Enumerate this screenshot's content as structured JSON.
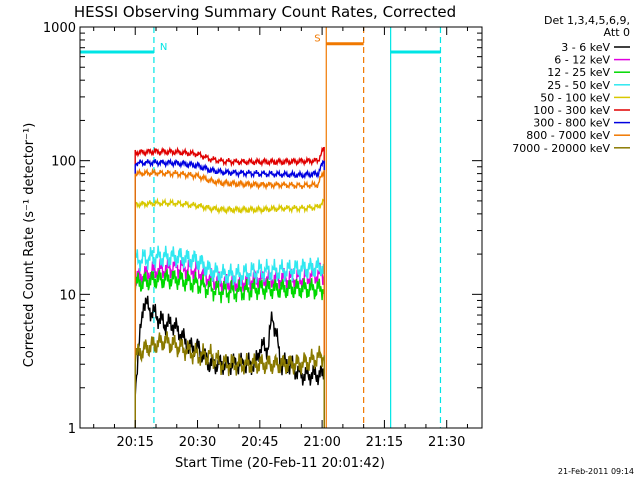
{
  "colors": {
    "bg": "#ffffff",
    "axes": "#000000",
    "cyan": "#00e5e5",
    "orange": "#f07800",
    "black": "#000000",
    "magenta": "#e000e0",
    "green": "#00d800",
    "lightcyan": "#30e8f0",
    "yellow": "#d8c800",
    "red": "#e00000",
    "blue": "#0000e0",
    "olive": "#8a7a00"
  },
  "chart_data": {
    "type": "line",
    "title": "HESSI Observing Summary Count Rates, Corrected",
    "xlabel": "Start Time (20-Feb-11 20:01:42)",
    "ylabel": "Corrected Count Rate (s⁻¹ detector⁻¹)",
    "y_scale": "log",
    "xlim_minutes_after_2000": [
      1.7,
      98.5
    ],
    "ylim": [
      1,
      1000
    ],
    "x_ticks": [
      {
        "label": "20:15",
        "t": 15
      },
      {
        "label": "20:30",
        "t": 30
      },
      {
        "label": "20:45",
        "t": 45
      },
      {
        "label": "21:00",
        "t": 60
      },
      {
        "label": "21:15",
        "t": 75
      },
      {
        "label": "21:30",
        "t": 90
      }
    ],
    "y_ticks": [
      {
        "label": "1",
        "v": 1
      },
      {
        "label": "10",
        "v": 10
      },
      {
        "label": "100",
        "v": 100
      },
      {
        "label": "1000",
        "v": 1000
      }
    ],
    "legend_header": [
      "Det 1,3,4,5,6,9,",
      "Att 0"
    ],
    "legend_position": "right",
    "series": [
      {
        "name": "3 - 6 keV",
        "color": "#000000",
        "points": [
          [
            15,
            2
          ],
          [
            15.5,
            3
          ],
          [
            17,
            9
          ],
          [
            18,
            8
          ],
          [
            20,
            7
          ],
          [
            22,
            6
          ],
          [
            24,
            6
          ],
          [
            26,
            5
          ],
          [
            28,
            4
          ],
          [
            30,
            4
          ],
          [
            33,
            3
          ],
          [
            36,
            3
          ],
          [
            40,
            3
          ],
          [
            44,
            3
          ],
          [
            45,
            4
          ],
          [
            47,
            4
          ],
          [
            48,
            7
          ],
          [
            49,
            5
          ],
          [
            50,
            3
          ],
          [
            52,
            3
          ],
          [
            55,
            2.5
          ],
          [
            58,
            2.5
          ],
          [
            60.5,
            2.5
          ]
        ]
      },
      {
        "name": "6 - 12 keV",
        "color": "#e000e0",
        "points": [
          [
            15,
            13
          ],
          [
            20,
            15
          ],
          [
            25,
            16
          ],
          [
            30,
            15
          ],
          [
            33,
            13
          ],
          [
            36,
            12
          ],
          [
            40,
            12
          ],
          [
            45,
            13
          ],
          [
            50,
            13
          ],
          [
            55,
            13
          ],
          [
            58,
            14
          ],
          [
            60.5,
            14
          ]
        ]
      },
      {
        "name": "12 - 25 keV",
        "color": "#00d800",
        "points": [
          [
            15,
            12
          ],
          [
            20,
            13
          ],
          [
            25,
            13
          ],
          [
            30,
            12
          ],
          [
            33,
            11
          ],
          [
            36,
            10.5
          ],
          [
            40,
            10.5
          ],
          [
            45,
            11
          ],
          [
            50,
            11
          ],
          [
            55,
            11
          ],
          [
            60.5,
            11
          ]
        ]
      },
      {
        "name": "25 - 50 keV",
        "color": "#30e8f0",
        "points": [
          [
            15,
            18
          ],
          [
            20,
            19
          ],
          [
            25,
            19
          ],
          [
            30,
            18
          ],
          [
            33,
            15
          ],
          [
            36,
            14
          ],
          [
            40,
            14
          ],
          [
            45,
            15
          ],
          [
            50,
            15
          ],
          [
            55,
            15.5
          ],
          [
            60.5,
            16
          ]
        ]
      },
      {
        "name": "50 - 100 keV",
        "color": "#d8c800",
        "points": [
          [
            15,
            47
          ],
          [
            20,
            48
          ],
          [
            25,
            48
          ],
          [
            30,
            46
          ],
          [
            33,
            44
          ],
          [
            36,
            43
          ],
          [
            40,
            43
          ],
          [
            45,
            43
          ],
          [
            50,
            44
          ],
          [
            55,
            44
          ],
          [
            59,
            45
          ],
          [
            60.5,
            50
          ]
        ]
      },
      {
        "name": "100 - 300 keV",
        "color": "#e00000",
        "points": [
          [
            15,
            115
          ],
          [
            20,
            117
          ],
          [
            25,
            116
          ],
          [
            30,
            112
          ],
          [
            33,
            103
          ],
          [
            36,
            99
          ],
          [
            40,
            98
          ],
          [
            45,
            98
          ],
          [
            50,
            98
          ],
          [
            55,
            99
          ],
          [
            59,
            100
          ],
          [
            60.5,
            125
          ]
        ]
      },
      {
        "name": "300 - 800 keV",
        "color": "#0000e0",
        "points": [
          [
            15,
            96
          ],
          [
            20,
            97
          ],
          [
            25,
            96
          ],
          [
            30,
            92
          ],
          [
            33,
            85
          ],
          [
            36,
            82
          ],
          [
            40,
            81
          ],
          [
            45,
            80
          ],
          [
            50,
            79
          ],
          [
            55,
            78
          ],
          [
            59,
            80
          ],
          [
            60.5,
            100
          ]
        ]
      },
      {
        "name": "800 - 7000 keV",
        "color": "#f07800",
        "points": [
          [
            15,
            80
          ],
          [
            20,
            81
          ],
          [
            25,
            80
          ],
          [
            30,
            77
          ],
          [
            33,
            71
          ],
          [
            36,
            68
          ],
          [
            40,
            67
          ],
          [
            45,
            66
          ],
          [
            50,
            66
          ],
          [
            55,
            65
          ],
          [
            59,
            66
          ],
          [
            60.5,
            85
          ]
        ]
      },
      {
        "name": "7000 - 20000 keV",
        "color": "#8a7a00",
        "points": [
          [
            15,
            3.5
          ],
          [
            18,
            4
          ],
          [
            22,
            4.5
          ],
          [
            26,
            4
          ],
          [
            30,
            3.5
          ],
          [
            33,
            3.5
          ],
          [
            36,
            3
          ],
          [
            40,
            3
          ],
          [
            45,
            3
          ],
          [
            50,
            3
          ],
          [
            55,
            3
          ],
          [
            60.5,
            3.5
          ]
        ]
      }
    ],
    "flags": [
      {
        "label": "N",
        "color": "#00e5e5",
        "level": 650,
        "segments": [
          [
            1.7,
            19.5
          ],
          [
            76.5,
            88.5
          ]
        ],
        "boundaries": [
          {
            "t": 19.5,
            "dashed": true
          },
          {
            "t": 76.5,
            "dashed": false
          },
          {
            "t": 88.5,
            "dashed": true
          }
        ]
      },
      {
        "label": "S",
        "color": "#f07800",
        "level": 750,
        "segments": [
          [
            61,
            70
          ]
        ],
        "boundaries": [
          {
            "t": 61,
            "dashed": false
          },
          {
            "t": 70,
            "dashed": true
          }
        ]
      }
    ]
  },
  "footer": {
    "timestamp": "21-Feb-2011 09:14"
  }
}
